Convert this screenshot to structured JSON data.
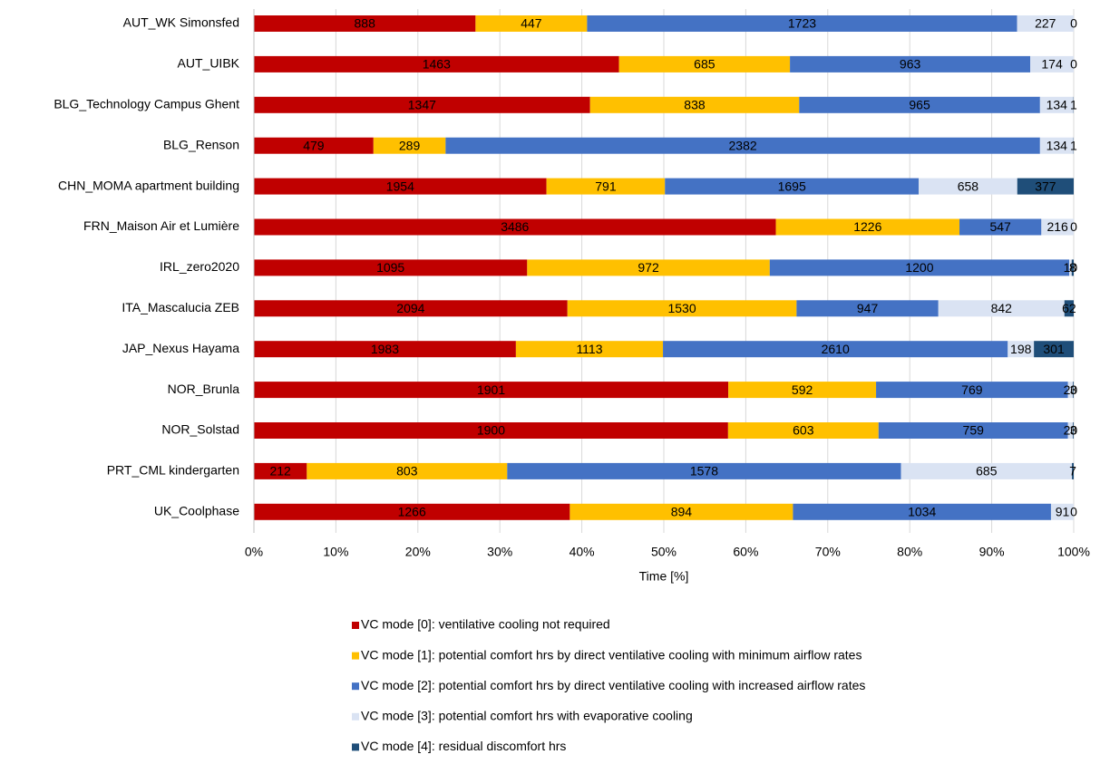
{
  "chart_data": {
    "type": "bar",
    "orientation": "horizontal",
    "stacked": "percent",
    "x_label": "Time [%]",
    "categories": [
      "AUT_WK Simonsfed",
      "AUT_UIBK",
      "BLG_Technology Campus Ghent",
      "BLG_Renson",
      "CHN_MOMA apartment building",
      "FRN_Maison Air et Lumière",
      "IRL_zero2020",
      "ITA_Mascalucia ZEB",
      "JAP_Nexus Hayama",
      "NOR_Brunla",
      "NOR_Solstad",
      "PRT_CML kindergarten",
      "UK_Coolphase"
    ],
    "series": [
      {
        "name": "VC mode [0]: ventilative cooling not required",
        "color": "#c00000",
        "values": [
          888,
          1463,
          1347,
          479,
          1954,
          3486,
          1095,
          2094,
          1983,
          1901,
          1900,
          212,
          1266
        ]
      },
      {
        "name": "VC mode [1]: potential comfort hrs by direct ventilative cooling with minimum airflow rates",
        "color": "#ffc000",
        "values": [
          447,
          685,
          838,
          289,
          791,
          1226,
          972,
          1530,
          1113,
          592,
          603,
          803,
          894
        ]
      },
      {
        "name": "VC mode [2]: potential comfort hrs by direct ventilative cooling with increased airflow rates",
        "color": "#4472c4",
        "values": [
          1723,
          963,
          965,
          2382,
          1695,
          547,
          1200,
          947,
          2610,
          769,
          759,
          1578,
          1034
        ]
      },
      {
        "name": "VC mode [3]: potential comfort hrs with evaporative cooling",
        "color": "#dae3f3",
        "values": [
          227,
          174,
          134,
          134,
          658,
          216,
          10,
          842,
          198,
          20,
          20,
          685,
          91
        ]
      },
      {
        "name": "VC mode [4]: residual discomfort hrs",
        "color": "#1f4e79",
        "values": [
          0,
          0,
          1,
          1,
          377,
          0,
          8,
          62,
          301,
          3,
          3,
          7,
          0
        ]
      }
    ],
    "xlim": [
      0,
      100
    ],
    "xticks": [
      {
        "value": 0,
        "label": "0%"
      },
      {
        "value": 10,
        "label": "10%"
      },
      {
        "value": 20,
        "label": "20%"
      },
      {
        "value": 30,
        "label": "30%"
      },
      {
        "value": 40,
        "label": "40%"
      },
      {
        "value": 50,
        "label": "50%"
      },
      {
        "value": 60,
        "label": "60%"
      },
      {
        "value": 70,
        "label": "70%"
      },
      {
        "value": 80,
        "label": "80%"
      },
      {
        "value": 90,
        "label": "90%"
      },
      {
        "value": 100,
        "label": "100%"
      }
    ],
    "grid": true,
    "legend": "bottom"
  }
}
